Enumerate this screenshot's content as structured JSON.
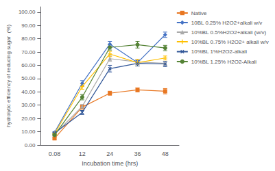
{
  "chart_data": {
    "type": "line",
    "xlabel": "Incubation time (hrs)",
    "ylabel": "hydrolytic efficiency of reducing sugar  (%)",
    "categories": [
      "0.08",
      "12",
      "24",
      "36",
      "48"
    ],
    "series": [
      {
        "name": "Native",
        "color": "#E87722",
        "marker": "square",
        "values": [
          5.0,
          28.5,
          39.0,
          41.5,
          40.5
        ],
        "yerr": [
          0.5,
          1.5,
          1.5,
          1.5,
          2.0
        ]
      },
      {
        "name": "10BL 0.25% H2O2+alkali w/v",
        "color": "#4472C4",
        "marker": "diamond",
        "values": [
          9.5,
          46.5,
          76.0,
          62.0,
          83.0
        ],
        "yerr": [
          0.5,
          2.0,
          2.0,
          2.5,
          2.0
        ]
      },
      {
        "name": "10%BL 0.5%H2O2+alkali (w/v)",
        "color": "#A9A9A9",
        "marker": "triangle",
        "values": [
          8.0,
          29.0,
          65.0,
          62.5,
          61.5
        ],
        "yerr": [
          0.5,
          1.5,
          2.0,
          2.0,
          1.5
        ]
      },
      {
        "name": "10%BL 0.75% H2O2+ alkali w/v",
        "color": "#FFC000",
        "marker": "plus",
        "values": [
          8.5,
          44.0,
          68.5,
          62.0,
          65.5
        ],
        "yerr": [
          0.5,
          2.0,
          2.0,
          2.5,
          1.5
        ]
      },
      {
        "name": "10%BL 1%H2O2-alkali",
        "color": "#2F5597",
        "marker": "x",
        "values": [
          9.0,
          24.5,
          57.5,
          61.5,
          61.0
        ],
        "yerr": [
          0.5,
          1.5,
          2.5,
          2.0,
          2.0
        ]
      },
      {
        "name": "10%BL 1.25% H2O2-Alkali",
        "color": "#548235",
        "marker": "circle",
        "values": [
          7.5,
          36.0,
          73.5,
          75.5,
          73.0
        ],
        "yerr": [
          0.5,
          2.0,
          2.0,
          2.5,
          2.0
        ]
      }
    ],
    "ylim": [
      0,
      104
    ],
    "yticks": [
      {
        "value": 0,
        "label": "0.00"
      },
      {
        "value": 10,
        "label": "10.00"
      },
      {
        "value": 20,
        "label": "20.00"
      },
      {
        "value": 30,
        "label": "30.00"
      },
      {
        "value": 40,
        "label": "40.00"
      },
      {
        "value": 50,
        "label": "50.00"
      },
      {
        "value": 60,
        "label": "60.00"
      },
      {
        "value": 70,
        "label": "70.00"
      },
      {
        "value": 80,
        "label": "80.00"
      },
      {
        "value": 90,
        "label": "90.00"
      },
      {
        "value": 100,
        "label": "100.00"
      }
    ],
    "grid": false,
    "legend": "upper right"
  }
}
